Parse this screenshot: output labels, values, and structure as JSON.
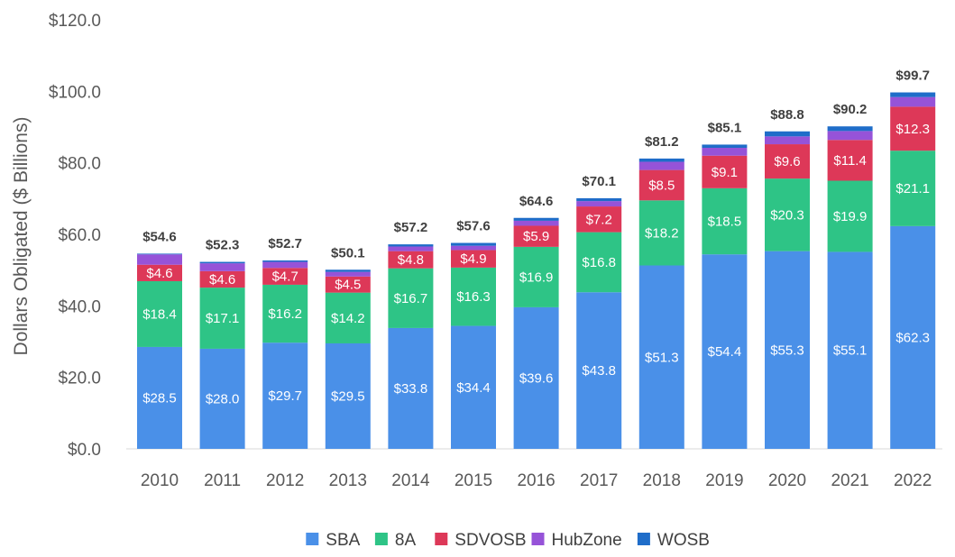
{
  "chart_data": {
    "type": "bar",
    "stacked": true,
    "title": "",
    "xlabel": "",
    "ylabel": "Dollars Obligated ($ Billions)",
    "ylim": [
      0,
      120
    ],
    "yticks": [
      0,
      20,
      40,
      60,
      80,
      100,
      120
    ],
    "ytick_labels": [
      "$0.0",
      "$20.0",
      "$40.0",
      "$60.0",
      "$80.0",
      "$100.0",
      "$120.0"
    ],
    "grid": false,
    "legend_position": "bottom",
    "categories": [
      "2010",
      "2011",
      "2012",
      "2013",
      "2014",
      "2015",
      "2016",
      "2017",
      "2018",
      "2019",
      "2020",
      "2021",
      "2022"
    ],
    "series": [
      {
        "name": "SBA",
        "color": "#4A90E8",
        "values": [
          28.5,
          28.0,
          29.7,
          29.5,
          33.8,
          34.4,
          39.6,
          43.8,
          51.3,
          54.4,
          55.3,
          55.1,
          62.3
        ],
        "labels": [
          "$28.5",
          "$28.0",
          "$29.7",
          "$29.5",
          "$33.8",
          "$34.4",
          "$39.6",
          "$43.8",
          "$51.3",
          "$54.4",
          "$55.3",
          "$55.1",
          "$62.3"
        ]
      },
      {
        "name": "8A",
        "color": "#2EC486",
        "values": [
          18.4,
          17.1,
          16.2,
          14.2,
          16.7,
          16.3,
          16.9,
          16.8,
          18.2,
          18.5,
          20.3,
          19.9,
          21.1
        ],
        "labels": [
          "$18.4",
          "$17.1",
          "$16.2",
          "$14.2",
          "$16.7",
          "$16.3",
          "$16.9",
          "$16.8",
          "$18.2",
          "$18.5",
          "$20.3",
          "$19.9",
          "$21.1"
        ]
      },
      {
        "name": "SDVOSB",
        "color": "#DD3858",
        "values": [
          4.6,
          4.6,
          4.7,
          4.5,
          4.8,
          4.9,
          5.9,
          7.2,
          8.5,
          9.1,
          9.6,
          11.4,
          12.3
        ],
        "labels": [
          "$4.6",
          "$4.6",
          "$4.7",
          "$4.5",
          "$4.8",
          "$4.9",
          "$5.9",
          "$7.2",
          "$8.5",
          "$9.1",
          "$9.6",
          "$11.4",
          "$12.3"
        ]
      },
      {
        "name": "HubZone",
        "color": "#9653D8",
        "values": [
          2.9,
          2.2,
          1.7,
          1.3,
          1.3,
          1.2,
          1.4,
          1.5,
          2.3,
          2.2,
          2.2,
          2.5,
          2.7
        ],
        "labels": []
      },
      {
        "name": "WOSB",
        "color": "#1F6DC9",
        "values": [
          0.2,
          0.4,
          0.4,
          0.6,
          0.6,
          0.8,
          0.8,
          0.8,
          0.9,
          0.9,
          1.4,
          1.3,
          1.3
        ],
        "labels": []
      }
    ],
    "totals": [
      54.6,
      52.3,
      52.7,
      50.1,
      57.2,
      57.6,
      64.6,
      70.1,
      81.2,
      85.1,
      88.8,
      90.2,
      99.7
    ],
    "total_labels": [
      "$54.6",
      "$52.3",
      "$52.7",
      "$50.1",
      "$57.2",
      "$57.6",
      "$64.6",
      "$70.1",
      "$81.2",
      "$85.1",
      "$88.8",
      "$90.2",
      "$99.7"
    ]
  }
}
